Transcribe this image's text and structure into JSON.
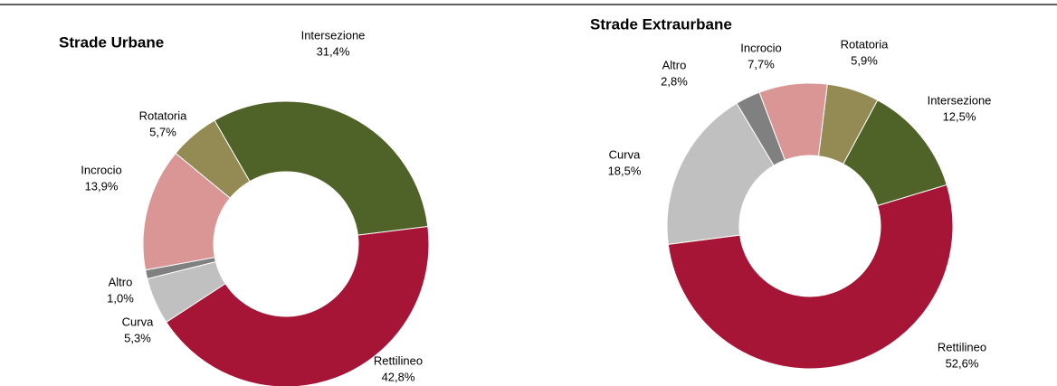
{
  "chart_data": [
    {
      "type": "pie",
      "donut": true,
      "title": "Strade Urbane",
      "categories": [
        "Intersezione",
        "Rettilineo",
        "Curva",
        "Altro",
        "Incrocio",
        "Rotatoria"
      ],
      "values": [
        31.4,
        42.8,
        5.3,
        1.0,
        13.9,
        5.7
      ],
      "value_labels": [
        "31,4%",
        "42,8%",
        "5,3%",
        "1,0%",
        "13,9%",
        "5,7%"
      ],
      "colors": [
        "#4f6228",
        "#a61535",
        "#c0c0c0",
        "#808080",
        "#da9694",
        "#948a54"
      ]
    },
    {
      "type": "pie",
      "donut": true,
      "title": "Strade Extraurbane",
      "categories": [
        "Rotatoria",
        "Intersezione",
        "Rettilineo",
        "Curva",
        "Altro",
        "Incrocio"
      ],
      "values": [
        5.9,
        12.5,
        52.6,
        18.5,
        2.8,
        7.7
      ],
      "value_labels": [
        "5,9%",
        "12,5%",
        "52,6%",
        "18,5%",
        "2,8%",
        "7,7%"
      ],
      "colors": [
        "#948a54",
        "#4f6228",
        "#a61535",
        "#c0c0c0",
        "#808080",
        "#da9694"
      ]
    }
  ]
}
